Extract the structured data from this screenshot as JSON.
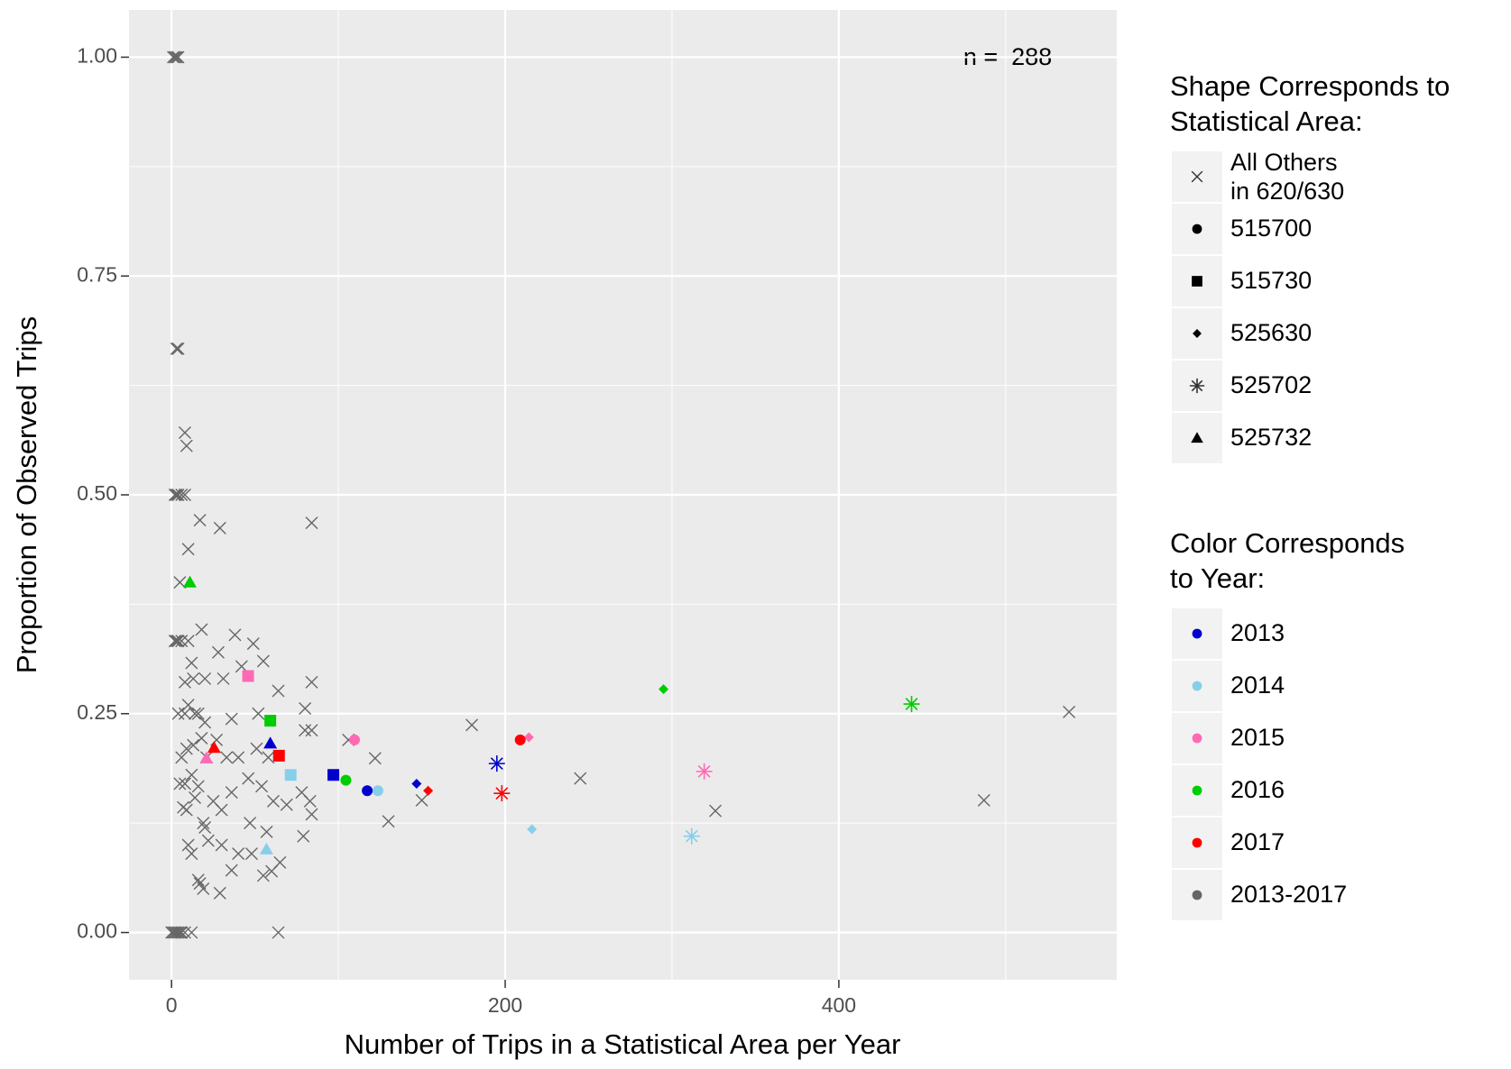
{
  "chart_data": {
    "type": "scatter",
    "xlabel": "Number of Trips in a Statistical Area per Year",
    "ylabel": "Proportion of Observed Trips",
    "annotation": "n =  288",
    "xlim": [
      -25.5,
      566.6
    ],
    "ylim": [
      -0.054,
      1.054
    ],
    "xticks": [
      0,
      200,
      400
    ],
    "yticks": [
      {
        "value": 0,
        "label": "0.00"
      },
      {
        "value": 0.25,
        "label": "0.25"
      },
      {
        "value": 0.5,
        "label": "0.50"
      },
      {
        "value": 0.75,
        "label": "0.75"
      },
      {
        "value": 1,
        "label": "1.00"
      }
    ],
    "grid": true,
    "series": [
      {
        "color": "#666666",
        "shape": "x",
        "x": [
          1,
          2,
          3,
          4,
          3,
          4,
          2,
          3,
          4,
          6,
          8,
          8,
          9,
          10,
          5,
          2,
          3,
          4,
          6,
          10,
          17,
          29,
          84,
          18,
          38,
          49,
          12,
          28,
          42,
          55,
          8,
          13,
          20,
          31,
          64,
          84,
          4,
          8,
          10,
          14,
          16,
          20,
          36,
          52,
          80,
          6,
          9,
          13,
          18,
          21,
          27,
          33,
          40,
          51,
          58,
          80,
          84,
          106,
          122,
          5,
          8,
          12,
          16,
          25,
          36,
          46,
          54,
          61,
          69,
          78,
          83,
          150,
          245,
          180,
          326,
          487,
          538,
          7,
          9,
          14,
          19,
          30,
          47,
          57,
          79,
          84,
          130,
          10,
          12,
          20,
          22,
          30,
          40,
          48,
          55,
          65,
          16,
          17,
          19,
          29,
          36,
          0,
          1,
          2,
          3,
          4,
          5,
          6,
          8,
          12,
          64,
          60
        ],
        "values": [
          1,
          1,
          1,
          1,
          0.667,
          0.667,
          0.5,
          0.5,
          0.5,
          0.5,
          0.5,
          0.571,
          0.556,
          0.438,
          0.4,
          0.333,
          0.333,
          0.333,
          0.333,
          0.333,
          0.471,
          0.462,
          0.468,
          0.346,
          0.34,
          0.33,
          0.308,
          0.32,
          0.304,
          0.31,
          0.286,
          0.29,
          0.29,
          0.29,
          0.276,
          0.286,
          0.25,
          0.25,
          0.26,
          0.25,
          0.25,
          0.24,
          0.244,
          0.25,
          0.256,
          0.2,
          0.21,
          0.214,
          0.222,
          0.2,
          0.22,
          0.2,
          0.2,
          0.21,
          0.2,
          0.231,
          0.231,
          0.22,
          0.199,
          0.17,
          0.17,
          0.18,
          0.167,
          0.15,
          0.16,
          0.176,
          0.167,
          0.15,
          0.146,
          0.16,
          0.15,
          0.151,
          0.176,
          0.237,
          0.139,
          0.151,
          0.252,
          0.143,
          0.14,
          0.154,
          0.125,
          0.14,
          0.125,
          0.115,
          0.11,
          0.135,
          0.127,
          0.1,
          0.09,
          0.12,
          0.105,
          0.1,
          0.09,
          0.09,
          0.065,
          0.08,
          0.06,
          0.056,
          0.05,
          0.045,
          0.071,
          0,
          0,
          0,
          0,
          0,
          0,
          0,
          0,
          0,
          0,
          0.07
        ]
      },
      {
        "color": "#0000cd",
        "shapes": [
          "circle",
          "square",
          "diamond",
          "asterisk",
          "triangle"
        ],
        "x": [
          117.3,
          97,
          146.9,
          195,
          59.2
        ],
        "values": [
          0.162,
          0.18,
          0.17,
          0.193,
          0.216
        ]
      },
      {
        "color": "#87ceeb",
        "shapes": [
          "circle",
          "square",
          "diamond",
          "asterisk",
          "triangle"
        ],
        "x": [
          123.7,
          71.4,
          216,
          311.8,
          56.9
        ],
        "values": [
          0.162,
          0.18,
          0.118,
          0.11,
          0.095
        ]
      },
      {
        "color": "#ff69b4",
        "shapes": [
          "circle",
          "square",
          "diamond",
          "asterisk",
          "triangle"
        ],
        "x": [
          109.7,
          45.9,
          214.2,
          319.3,
          20.9
        ],
        "values": [
          0.22,
          0.293,
          0.223,
          0.184,
          0.199
        ]
      },
      {
        "color": "#00cd00",
        "shapes": [
          "circle",
          "square",
          "diamond",
          "asterisk",
          "triangle"
        ],
        "x": [
          104.5,
          59.2,
          294.9,
          443.6,
          11
        ],
        "values": [
          0.174,
          0.242,
          0.278,
          0.261,
          0.4
        ]
      },
      {
        "color": "#ff0000",
        "shapes": [
          "circle",
          "square",
          "diamond",
          "asterisk",
          "triangle"
        ],
        "x": [
          209,
          64.4,
          153.8,
          198,
          25.5
        ],
        "values": [
          0.22,
          0.202,
          0.162,
          0.159,
          0.211
        ]
      }
    ],
    "shape_legend": {
      "title": [
        "Shape Corresponds to",
        "Statistical Area:"
      ],
      "labels": [
        [
          "All Others",
          "in 620/630"
        ],
        "515700",
        "515730",
        "525630",
        "525702",
        "525732"
      ],
      "shapes": [
        "x",
        "circle",
        "square",
        "diamond",
        "asterisk",
        "triangle"
      ]
    },
    "color_legend": {
      "title": [
        "Color Corresponds",
        "to Year:"
      ],
      "labels": [
        "2013",
        "2014",
        "2015",
        "2016",
        "2017",
        "2013-2017"
      ],
      "colors": [
        "#0000cd",
        "#87ceeb",
        "#ff69b4",
        "#00cd00",
        "#ff0000",
        "#666666"
      ]
    }
  }
}
